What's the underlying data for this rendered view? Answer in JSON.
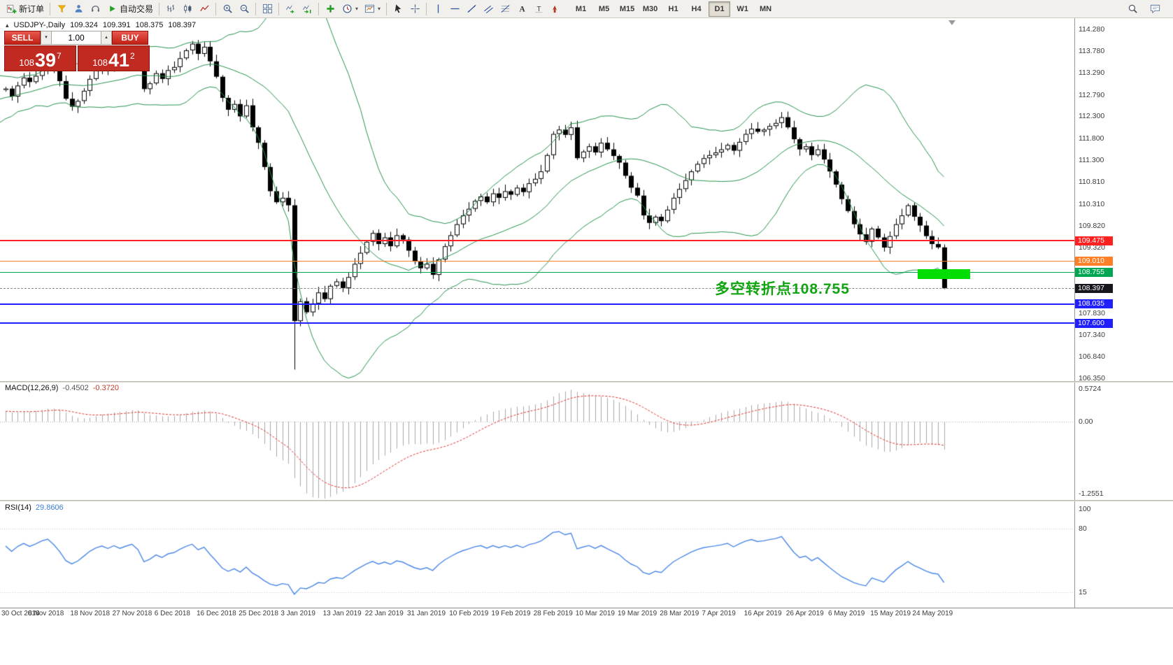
{
  "colors": {
    "bull": "#ffffff",
    "bear": "#000000",
    "wick": "#000000",
    "bollinger": "#23914b",
    "macd_hist": "#a8a8a8",
    "macd_signal": "#e03131",
    "rsi_line": "#4a86e8",
    "hline_red": "#ff2020",
    "hline_orange": "#ff7f27",
    "hline_green": "#00a651",
    "hline_blue": "#2020ff",
    "bid_tag": "#16161d",
    "highlight": "#00dd00",
    "annotation": "#10a510"
  },
  "toolbar": {
    "groups": [
      {
        "items": [
          {
            "name": "new-order-button",
            "icon": "new-order-icon",
            "label": "新订单"
          }
        ]
      },
      {
        "items": [
          {
            "name": "metaeditor-button",
            "icon": "funnel-icon"
          },
          {
            "name": "market-watch-button",
            "icon": "person-icon"
          },
          {
            "name": "community-button",
            "icon": "headset-icon"
          },
          {
            "name": "autotrading-button",
            "icon": "play-icon",
            "label": "自动交易"
          }
        ]
      },
      {
        "items": [
          {
            "name": "bar-chart-button",
            "icon": "bars-chart-icon"
          },
          {
            "name": "candlestick-chart-button",
            "icon": "candlestick-icon"
          },
          {
            "name": "line-chart-button",
            "icon": "line-chart-icon"
          }
        ]
      },
      {
        "items": [
          {
            "name": "zoom-in-button",
            "icon": "zoom-in-icon"
          },
          {
            "name": "zoom-out-button",
            "icon": "zoom-out-icon"
          }
        ]
      },
      {
        "items": [
          {
            "name": "tile-windows-button",
            "icon": "tile-windows-icon"
          }
        ]
      },
      {
        "items": [
          {
            "name": "auto-scroll-button",
            "icon": "auto-scroll-icon"
          },
          {
            "name": "chart-shift-button",
            "icon": "chart-shift-icon"
          }
        ]
      },
      {
        "items": [
          {
            "name": "indicators-button",
            "icon": "plus-icon"
          },
          {
            "name": "periods-button",
            "icon": "clock-icon",
            "caret": true
          },
          {
            "name": "templates-button",
            "icon": "template-icon",
            "caret": true
          }
        ]
      },
      {
        "items": [
          {
            "name": "cursor-button",
            "icon": "cursor-icon"
          },
          {
            "name": "crosshair-button",
            "icon": "crosshair-icon"
          }
        ]
      },
      {
        "items": [
          {
            "name": "vertical-line-button",
            "icon": "vline-icon"
          },
          {
            "name": "horizontal-line-button",
            "icon": "hline-icon"
          },
          {
            "name": "trendline-button",
            "icon": "trendline-icon"
          },
          {
            "name": "channel-button",
            "icon": "channel-icon"
          },
          {
            "name": "fibonacci-button",
            "icon": "fibonacci-icon"
          },
          {
            "name": "text-button",
            "icon": "text-icon"
          },
          {
            "name": "label-button",
            "icon": "label-icon"
          },
          {
            "name": "arrows-button",
            "icon": "arrow-shapes-icon"
          }
        ]
      }
    ],
    "timeframes": [
      "M1",
      "M5",
      "M15",
      "M30",
      "H1",
      "H4",
      "D1",
      "W1",
      "MN"
    ],
    "active_timeframe": "D1",
    "right_items": [
      {
        "name": "search-button",
        "icon": "search-icon"
      },
      {
        "name": "chat-button",
        "icon": "chat-icon"
      }
    ]
  },
  "chart": {
    "symbol_period": "USDJPY-,Daily",
    "open": "109.324",
    "high": "109.391",
    "low": "108.375",
    "close": "108.397"
  },
  "one_click": {
    "sell_label": "SELL",
    "buy_label": "BUY",
    "volume": "1.00",
    "sell_price": {
      "prefix": "108",
      "big": "39",
      "sup": "7"
    },
    "buy_price": {
      "prefix": "108",
      "big": "41",
      "sup": "2"
    }
  },
  "annotation": {
    "text": "多空转折点108.755"
  },
  "highlight_rect": {
    "from_index": 152,
    "to_index": 160,
    "top_price": 108.83,
    "bottom_price": 108.6
  },
  "hlines": [
    {
      "name": "resistance-line-upper",
      "price": 109.475,
      "color_key": "hline_red",
      "label": "109.475"
    },
    {
      "name": "resistance-line-lower",
      "price": 109.01,
      "color_key": "hline_orange",
      "label": "109.010"
    },
    {
      "name": "pivot-line",
      "price": 108.755,
      "color_key": "hline_green",
      "label": "108.755"
    },
    {
      "name": "support-line-upper",
      "price": 108.035,
      "color_key": "hline_blue",
      "label": "108.035"
    },
    {
      "name": "support-line-lower",
      "price": 107.6,
      "color_key": "hline_blue",
      "label": "107.600"
    }
  ],
  "bid": {
    "price": 108.397,
    "label": "108.397"
  },
  "price_axis": {
    "labels": [
      "114.280",
      "113.780",
      "113.290",
      "112.790",
      "112.300",
      "111.800",
      "111.300",
      "110.810",
      "110.310",
      "109.820",
      "109.320",
      "107.830",
      "107.340",
      "106.840",
      "106.350"
    ]
  },
  "macd": {
    "label": "MACD(12,26,9)",
    "value_main": "-0.4502",
    "value_signal": "-0.3720",
    "scale": [
      {
        "text": "0.5724",
        "value": 0.5724
      },
      {
        "text": "0.00",
        "value": 0
      },
      {
        "text": "-1.2551",
        "value": -1.2551
      }
    ]
  },
  "rsi": {
    "label": "RSI(14)",
    "value": "29.8606",
    "scale": [
      {
        "text": "100",
        "value": 100
      },
      {
        "text": "80",
        "value": 80
      },
      {
        "text": "15",
        "value": 15
      }
    ],
    "levels": [
      80,
      15
    ]
  },
  "time_axis": {
    "bars_per_label": 7,
    "labels": [
      "30 Oct 2018",
      "8 Nov 2018",
      "18 Nov 2018",
      "27 Nov 2018",
      "6 Dec 2018",
      "16 Dec 2018",
      "25 Dec 2018",
      "3 Jan 2019",
      "13 Jan 2019",
      "22 Jan 2019",
      "31 Jan 2019",
      "10 Feb 2019",
      "19 Feb 2019",
      "28 Feb 2019",
      "10 Mar 2019",
      "19 Mar 2019",
      "28 Mar 2019",
      "7 Apr 2019",
      "16 Apr 2019",
      "26 Apr 2019",
      "6 May 2019",
      "15 May 2019",
      "24 May 2019"
    ]
  },
  "chart_data": {
    "type": "candlestick",
    "symbol": "USDJPY-",
    "timeframe": "Daily",
    "price_range_visible": [
      106.35,
      114.53
    ],
    "bollinger": {
      "period": 20,
      "deviation": 2
    },
    "macd_params": {
      "fast": 12,
      "slow": 26,
      "signal": 9
    },
    "rsi_period": 14,
    "last_candle": {
      "open": 109.324,
      "high": 109.391,
      "low": 108.375,
      "close": 108.397
    },
    "warmup_closes": [
      112.15,
      112.35,
      112.2,
      112.45,
      112.55,
      112.4,
      112.62,
      112.7,
      112.55,
      112.78,
      112.68,
      112.88,
      112.8,
      113.0,
      112.9,
      113.05,
      112.95,
      112.85,
      113.05,
      112.9
    ],
    "closes": [
      112.93,
      112.75,
      113.0,
      113.18,
      113.08,
      113.22,
      113.4,
      113.52,
      113.35,
      113.1,
      112.7,
      112.52,
      112.65,
      112.88,
      113.15,
      113.35,
      113.48,
      113.38,
      113.55,
      113.45,
      113.58,
      113.7,
      113.5,
      112.92,
      113.05,
      113.28,
      113.15,
      113.35,
      113.42,
      113.62,
      113.8,
      113.95,
      113.72,
      113.88,
      113.55,
      113.2,
      112.72,
      112.45,
      112.58,
      112.3,
      112.55,
      112.05,
      111.7,
      111.15,
      110.6,
      110.35,
      110.45,
      110.28,
      107.65,
      108.1,
      107.85,
      108.05,
      108.3,
      108.15,
      108.45,
      108.55,
      108.4,
      108.65,
      108.95,
      109.2,
      109.45,
      109.65,
      109.4,
      109.55,
      109.35,
      109.6,
      109.5,
      109.25,
      109.0,
      108.85,
      108.95,
      108.7,
      109.05,
      109.35,
      109.6,
      109.85,
      110.05,
      110.2,
      110.38,
      110.48,
      110.35,
      110.55,
      110.45,
      110.6,
      110.52,
      110.68,
      110.58,
      110.78,
      110.88,
      111.05,
      111.42,
      111.9,
      112.0,
      111.88,
      112.05,
      111.35,
      111.5,
      111.62,
      111.48,
      111.7,
      111.55,
      111.4,
      111.25,
      110.95,
      110.68,
      110.5,
      110.05,
      109.88,
      110.02,
      109.92,
      110.18,
      110.45,
      110.65,
      110.85,
      111.05,
      111.22,
      111.35,
      111.42,
      111.48,
      111.55,
      111.65,
      111.52,
      111.72,
      111.9,
      112.02,
      111.95,
      112.0,
      112.08,
      112.15,
      112.28,
      112.05,
      111.78,
      111.55,
      111.62,
      111.42,
      111.55,
      111.32,
      111.05,
      110.75,
      110.42,
      110.15,
      109.85,
      109.62,
      109.45,
      109.75,
      109.55,
      109.32,
      109.58,
      109.85,
      110.05,
      110.28,
      110.02,
      109.82,
      109.58,
      109.4,
      109.324,
      108.397
    ],
    "overrides": {
      "48": {
        "high": 110.42,
        "low": 106.55
      },
      "129": {
        "high": 112.4
      },
      "156": {
        "high": 109.391,
        "low": 108.375
      }
    }
  }
}
